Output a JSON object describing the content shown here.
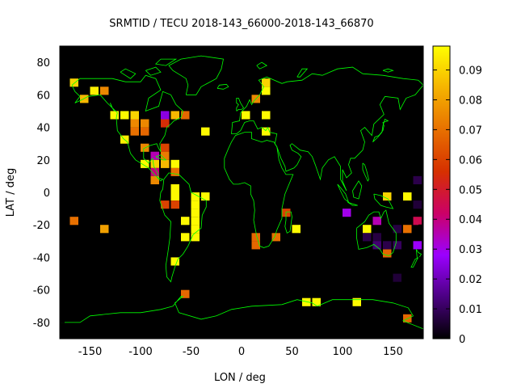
{
  "chart_data": {
    "type": "heatmap",
    "title": "SRMTID / TECU 2018-143_66000-2018-143_66870",
    "xlabel": "LON / deg",
    "ylabel": "LAT / deg",
    "xlim": [
      -180,
      180
    ],
    "ylim": [
      -90,
      90
    ],
    "x_ticks": [
      -150,
      -100,
      -50,
      0,
      50,
      100,
      150
    ],
    "x_tick_labels": [
      "-150",
      "-100",
      "-50",
      "0",
      "50",
      "100",
      "150"
    ],
    "y_ticks": [
      80,
      60,
      40,
      20,
      0,
      -20,
      -40,
      -60,
      -80
    ],
    "y_tick_labels": [
      "80",
      "60",
      "40",
      "20",
      "0",
      "-20",
      "-40",
      "-60",
      "-80"
    ],
    "colorbar": {
      "range": [
        0,
        0.098
      ],
      "ticks": [
        0,
        0.01,
        0.02,
        0.03,
        0.04,
        0.05,
        0.06,
        0.07,
        0.08,
        0.09
      ],
      "tick_labels": [
        "0",
        "0.01",
        "0.02",
        "0.03",
        "0.04",
        "0.05",
        "0.06",
        "0.07",
        "0.08",
        "0.09"
      ],
      "colormap": [
        "#000000",
        "#4b0082",
        "#9b00ff",
        "#cc0066",
        "#d63000",
        "#e87000",
        "#f5b300",
        "#ffff00"
      ]
    },
    "background": "#000000",
    "coastline_color": "#00ff00",
    "cell_size_deg": [
      10,
      5
    ],
    "cells": [
      {
        "lon": -165,
        "lat": 67.5,
        "v": 0.09
      },
      {
        "lon": -155,
        "lat": 57.5,
        "v": 0.085
      },
      {
        "lon": -145,
        "lat": 62.5,
        "v": 0.095
      },
      {
        "lon": -135,
        "lat": 62.5,
        "v": 0.075
      },
      {
        "lon": -125,
        "lat": 47.5,
        "v": 0.097
      },
      {
        "lon": -115,
        "lat": 47.5,
        "v": 0.097
      },
      {
        "lon": -105,
        "lat": 47.5,
        "v": 0.09
      },
      {
        "lon": -105,
        "lat": 42.5,
        "v": 0.075
      },
      {
        "lon": -95,
        "lat": 42.5,
        "v": 0.075
      },
      {
        "lon": -105,
        "lat": 37.5,
        "v": 0.07
      },
      {
        "lon": -95,
        "lat": 37.5,
        "v": 0.068
      },
      {
        "lon": -115,
        "lat": 32.5,
        "v": 0.095
      },
      {
        "lon": -75,
        "lat": 47.5,
        "v": 0.025
      },
      {
        "lon": -75,
        "lat": 42.5,
        "v": 0.055
      },
      {
        "lon": -65,
        "lat": 47.5,
        "v": 0.085
      },
      {
        "lon": -55,
        "lat": 47.5,
        "v": 0.068
      },
      {
        "lon": -35,
        "lat": 37.5,
        "v": 0.097
      },
      {
        "lon": -95,
        "lat": 27.5,
        "v": 0.075
      },
      {
        "lon": -75,
        "lat": 27.5,
        "v": 0.06
      },
      {
        "lon": -75,
        "lat": 22.5,
        "v": 0.072
      },
      {
        "lon": -85,
        "lat": 22.5,
        "v": 0.035
      },
      {
        "lon": -95,
        "lat": 17.5,
        "v": 0.097
      },
      {
        "lon": -85,
        "lat": 17.5,
        "v": 0.09
      },
      {
        "lon": -75,
        "lat": 17.5,
        "v": 0.085
      },
      {
        "lon": -65,
        "lat": 17.5,
        "v": 0.097
      },
      {
        "lon": -85,
        "lat": 12.5,
        "v": 0.04
      },
      {
        "lon": -65,
        "lat": 12.5,
        "v": 0.07
      },
      {
        "lon": -85,
        "lat": 7.5,
        "v": 0.075
      },
      {
        "lon": -65,
        "lat": 2.5,
        "v": 0.097
      },
      {
        "lon": -65,
        "lat": -2.5,
        "v": 0.097
      },
      {
        "lon": -35,
        "lat": -2.5,
        "v": 0.097
      },
      {
        "lon": -45,
        "lat": -2.5,
        "v": 0.097
      },
      {
        "lon": -75,
        "lat": -7.5,
        "v": 0.06
      },
      {
        "lon": -65,
        "lat": -7.5,
        "v": 0.06
      },
      {
        "lon": -45,
        "lat": -7.5,
        "v": 0.097
      },
      {
        "lon": -45,
        "lat": -12.5,
        "v": 0.097
      },
      {
        "lon": -55,
        "lat": -17.5,
        "v": 0.097
      },
      {
        "lon": -45,
        "lat": -17.5,
        "v": 0.097
      },
      {
        "lon": -45,
        "lat": -22.5,
        "v": 0.097
      },
      {
        "lon": -55,
        "lat": -27.5,
        "v": 0.097
      },
      {
        "lon": -45,
        "lat": -27.5,
        "v": 0.097
      },
      {
        "lon": -65,
        "lat": -42.5,
        "v": 0.097
      },
      {
        "lon": -55,
        "lat": -62.5,
        "v": 0.068
      },
      {
        "lon": -165,
        "lat": -17.5,
        "v": 0.07
      },
      {
        "lon": -135,
        "lat": -22.5,
        "v": 0.08
      },
      {
        "lon": 5,
        "lat": 47.5,
        "v": 0.097
      },
      {
        "lon": 25,
        "lat": 67.5,
        "v": 0.09
      },
      {
        "lon": 25,
        "lat": 62.5,
        "v": 0.097
      },
      {
        "lon": 15,
        "lat": 57.5,
        "v": 0.075
      },
      {
        "lon": 25,
        "lat": 47.5,
        "v": 0.097
      },
      {
        "lon": 25,
        "lat": 37.5,
        "v": 0.097
      },
      {
        "lon": 15,
        "lat": -27.5,
        "v": 0.068
      },
      {
        "lon": 15,
        "lat": -32.5,
        "v": 0.068
      },
      {
        "lon": 35,
        "lat": -27.5,
        "v": 0.07
      },
      {
        "lon": 45,
        "lat": -12.5,
        "v": 0.06
      },
      {
        "lon": 55,
        "lat": -22.5,
        "v": 0.097
      },
      {
        "lon": 65,
        "lat": -67.5,
        "v": 0.097
      },
      {
        "lon": 75,
        "lat": -67.5,
        "v": 0.097
      },
      {
        "lon": 105,
        "lat": -12.5,
        "v": 0.03
      },
      {
        "lon": 115,
        "lat": -67.5,
        "v": 0.097
      },
      {
        "lon": 125,
        "lat": -22.5,
        "v": 0.097
      },
      {
        "lon": 125,
        "lat": -27.5,
        "v": 0.008
      },
      {
        "lon": 135,
        "lat": -17.5,
        "v": 0.035
      },
      {
        "lon": 135,
        "lat": -27.5,
        "v": 0.007
      },
      {
        "lon": 135,
        "lat": -32.5,
        "v": 0.012
      },
      {
        "lon": 145,
        "lat": -2.5,
        "v": 0.09
      },
      {
        "lon": 145,
        "lat": -37.5,
        "v": 0.068
      },
      {
        "lon": 145,
        "lat": -32.5,
        "v": 0.008
      },
      {
        "lon": 155,
        "lat": -22.5,
        "v": 0.007
      },
      {
        "lon": 155,
        "lat": -32.5,
        "v": 0.01
      },
      {
        "lon": 165,
        "lat": -2.5,
        "v": 0.097
      },
      {
        "lon": 165,
        "lat": -22.5,
        "v": 0.07
      },
      {
        "lon": 175,
        "lat": -17.5,
        "v": 0.045
      },
      {
        "lon": 175,
        "lat": -32.5,
        "v": 0.028
      },
      {
        "lon": 175,
        "lat": 7.5,
        "v": 0.008
      },
      {
        "lon": 175,
        "lat": -7.5,
        "v": 0.006
      },
      {
        "lon": 155,
        "lat": -52.5,
        "v": 0.006
      },
      {
        "lon": 165,
        "lat": -77.5,
        "v": 0.068
      }
    ]
  }
}
